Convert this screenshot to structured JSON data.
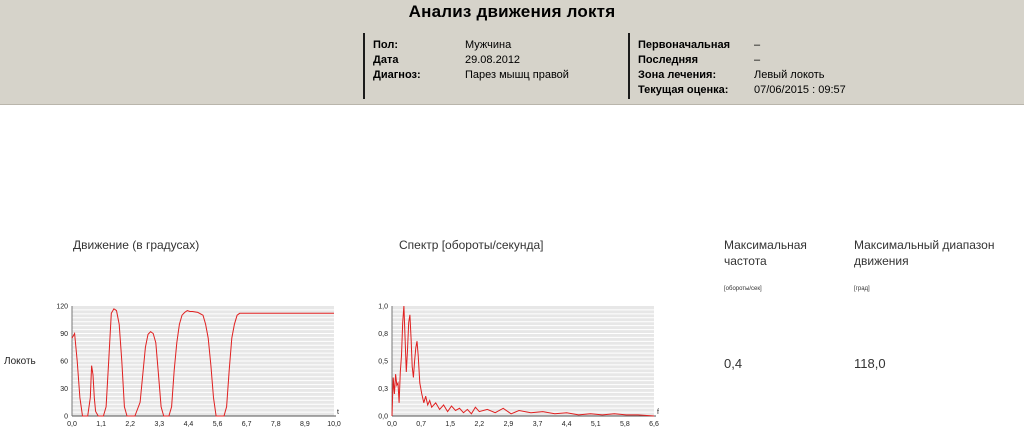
{
  "header": {
    "title": "Анализ движения локтя",
    "left": [
      {
        "key": "Пол:",
        "value": "Мужчина"
      },
      {
        "key": "Дата",
        "value": "29.08.2012"
      },
      {
        "key": "Диагноз:",
        "value": "Парез мышц правой"
      }
    ],
    "right": [
      {
        "key": "Первоначальная",
        "value": "–"
      },
      {
        "key": "Последняя",
        "value": "–"
      },
      {
        "key": "Зона лечения:",
        "value": "Левый локоть"
      },
      {
        "key": "Текущая оценка:",
        "value": "07/06/2015 : 09:57"
      }
    ]
  },
  "row_label": "Локоть",
  "motion_title": "Движение (в градусах)",
  "spectrum_title": "Спектр [обороты/секунда]",
  "max_freq": {
    "title": "Максимальная частота",
    "unit": "[обороты/сек]",
    "value": "0,4"
  },
  "max_range": {
    "title": "Максимальный диапазон движения",
    "unit": "[град]",
    "value": "118,0"
  },
  "chart_data": [
    {
      "type": "line",
      "title": "Движение (в градусах)",
      "x_axis_symbol": "t",
      "xlim": [
        0,
        10
      ],
      "ylim": [
        0,
        120
      ],
      "x_ticks": [
        "0,0",
        "1,1",
        "2,2",
        "3,3",
        "4,4",
        "5,6",
        "6,7",
        "7,8",
        "8,9",
        "10,0"
      ],
      "y_ticks": [
        "0",
        "30",
        "60",
        "90",
        "120"
      ],
      "grid": true,
      "series": [
        {
          "color": "#e02020",
          "x": [
            0.0,
            0.1,
            0.2,
            0.3,
            0.4,
            0.5,
            0.6,
            0.7,
            0.75,
            0.8,
            0.85,
            0.9,
            1.0,
            1.1,
            1.2,
            1.3,
            1.4,
            1.5,
            1.6,
            1.7,
            1.8,
            1.9,
            2.0,
            2.1,
            2.2,
            2.3,
            2.4,
            2.6,
            2.8,
            2.9,
            3.0,
            3.1,
            3.2,
            3.3,
            3.4,
            3.5,
            3.6,
            3.7,
            3.8,
            3.9,
            4.0,
            4.1,
            4.2,
            4.3,
            4.4,
            4.5,
            4.6,
            4.8,
            5.0,
            5.1,
            5.2,
            5.3,
            5.4,
            5.5,
            5.6,
            5.7,
            5.8,
            5.9,
            6.0,
            6.1,
            6.2,
            6.3,
            6.4,
            6.5,
            6.6,
            6.7,
            7.0,
            8.0,
            9.0,
            10.0
          ],
          "y": [
            85,
            90,
            60,
            20,
            0,
            0,
            0,
            20,
            55,
            45,
            20,
            5,
            0,
            0,
            0,
            10,
            60,
            112,
            117,
            115,
            100,
            60,
            10,
            0,
            0,
            0,
            0,
            15,
            75,
            89,
            92,
            90,
            80,
            45,
            10,
            0,
            0,
            0,
            10,
            50,
            80,
            100,
            110,
            113,
            115,
            114,
            114,
            113,
            110,
            100,
            85,
            55,
            20,
            0,
            0,
            0,
            0,
            10,
            50,
            85,
            100,
            110,
            112,
            112,
            112,
            112,
            112,
            112,
            112,
            112
          ]
        }
      ]
    },
    {
      "type": "line",
      "title": "Спектр [обороты/секунда]",
      "x_axis_symbol": "f",
      "xlim": [
        0,
        6.6
      ],
      "ylim": [
        0,
        1.0
      ],
      "x_ticks": [
        "0,0",
        "0,7",
        "1,5",
        "2,2",
        "2,9",
        "3,7",
        "4,4",
        "5,1",
        "5,8",
        "6,6"
      ],
      "y_ticks": [
        "0,0",
        "0,3",
        "0,5",
        "0,8",
        "1,0"
      ],
      "grid": true,
      "series": [
        {
          "color": "#e02020",
          "x": [
            0.0,
            0.03,
            0.06,
            0.09,
            0.12,
            0.15,
            0.18,
            0.21,
            0.24,
            0.27,
            0.3,
            0.33,
            0.36,
            0.39,
            0.42,
            0.45,
            0.48,
            0.51,
            0.54,
            0.57,
            0.6,
            0.63,
            0.66,
            0.7,
            0.75,
            0.8,
            0.85,
            0.9,
            0.95,
            1.0,
            1.1,
            1.2,
            1.3,
            1.4,
            1.5,
            1.6,
            1.7,
            1.8,
            1.9,
            2.0,
            2.1,
            2.2,
            2.4,
            2.6,
            2.8,
            3.0,
            3.2,
            3.5,
            3.8,
            4.1,
            4.4,
            4.7,
            5.0,
            5.3,
            5.6,
            5.9,
            6.2,
            6.6
          ],
          "y": [
            0.0,
            0.35,
            0.2,
            0.38,
            0.28,
            0.3,
            0.12,
            0.4,
            0.55,
            0.85,
            1.0,
            0.7,
            0.4,
            0.6,
            0.85,
            0.92,
            0.7,
            0.45,
            0.35,
            0.5,
            0.62,
            0.68,
            0.55,
            0.3,
            0.2,
            0.12,
            0.18,
            0.1,
            0.14,
            0.08,
            0.12,
            0.06,
            0.1,
            0.04,
            0.09,
            0.05,
            0.07,
            0.03,
            0.06,
            0.02,
            0.08,
            0.04,
            0.06,
            0.03,
            0.07,
            0.02,
            0.05,
            0.03,
            0.04,
            0.02,
            0.03,
            0.01,
            0.02,
            0.01,
            0.02,
            0.01,
            0.01,
            0.0
          ]
        }
      ]
    }
  ]
}
